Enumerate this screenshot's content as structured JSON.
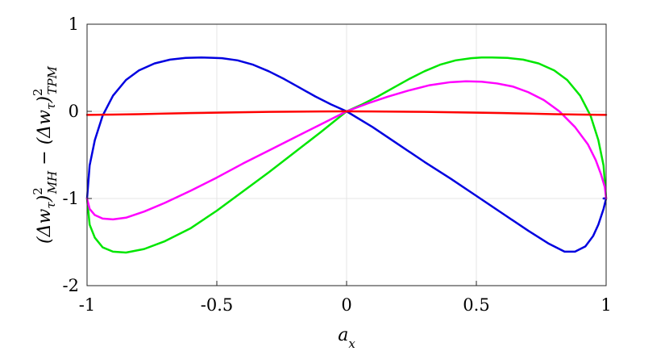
{
  "chart_data": {
    "type": "line",
    "xlabel": "a_x",
    "ylabel": "(Δw_τ)²_MH − (Δw_τ)²_TPM",
    "xlim": [
      -1,
      1
    ],
    "ylim": [
      -2,
      1
    ],
    "xticks": [
      "-1",
      "-0.5",
      "0",
      "0.5",
      "1"
    ],
    "yticks": [
      "-2",
      "-1",
      "0",
      "1"
    ],
    "grid": true,
    "legend": "none",
    "series": [
      {
        "color": "#0000e0",
        "x": [
          -1,
          -0.99,
          -0.97,
          -0.94,
          -0.9,
          -0.85,
          -0.8,
          -0.74,
          -0.68,
          -0.62,
          -0.56,
          -0.52,
          -0.48,
          -0.42,
          -0.36,
          -0.3,
          -0.24,
          -0.18,
          -0.12,
          -0.06,
          0,
          0.1,
          0.2,
          0.3,
          0.4,
          0.5,
          0.6,
          0.7,
          0.78,
          0.84,
          0.88,
          0.92,
          0.95,
          0.97,
          0.99,
          1,
          0.999,
          0.995,
          0.99
        ],
        "y": [
          -1,
          -0.62,
          -0.33,
          -0.05,
          0.18,
          0.36,
          0.47,
          0.55,
          0.594,
          0.613,
          0.618,
          0.615,
          0.61,
          0.585,
          0.535,
          0.46,
          0.37,
          0.27,
          0.17,
          0.08,
          0,
          -0.18,
          -0.38,
          -0.58,
          -0.77,
          -0.97,
          -1.17,
          -1.37,
          -1.52,
          -1.61,
          -1.61,
          -1.55,
          -1.43,
          -1.3,
          -1.12,
          -1,
          -0.995,
          -0.998,
          -1
        ]
      },
      {
        "color": "#00e600",
        "x": [
          -1,
          -0.99,
          -0.97,
          -0.94,
          -0.9,
          -0.85,
          -0.78,
          -0.7,
          -0.6,
          -0.5,
          -0.4,
          -0.3,
          -0.2,
          -0.1,
          0,
          0.06,
          0.12,
          0.18,
          0.24,
          0.3,
          0.36,
          0.42,
          0.48,
          0.52,
          0.56,
          0.62,
          0.68,
          0.74,
          0.8,
          0.85,
          0.9,
          0.94,
          0.97,
          0.99,
          1
        ],
        "y": [
          -1,
          -1.3,
          -1.45,
          -1.56,
          -1.61,
          -1.62,
          -1.58,
          -1.49,
          -1.34,
          -1.14,
          -0.92,
          -0.7,
          -0.47,
          -0.24,
          0,
          0.08,
          0.17,
          0.27,
          0.37,
          0.46,
          0.535,
          0.585,
          0.61,
          0.618,
          0.618,
          0.613,
          0.594,
          0.55,
          0.47,
          0.36,
          0.18,
          -0.05,
          -0.33,
          -0.62,
          -1
        ]
      },
      {
        "color": "#ff00ff",
        "x": [
          -1,
          -0.99,
          -0.97,
          -0.94,
          -0.9,
          -0.85,
          -0.78,
          -0.7,
          -0.6,
          -0.5,
          -0.4,
          -0.3,
          -0.2,
          -0.1,
          0,
          0.08,
          0.16,
          0.24,
          0.32,
          0.4,
          0.46,
          0.52,
          0.58,
          0.64,
          0.7,
          0.76,
          0.82,
          0.88,
          0.93,
          0.96,
          0.98,
          0.995,
          1
        ],
        "y": [
          -1,
          -1.12,
          -1.19,
          -1.23,
          -1.24,
          -1.22,
          -1.15,
          -1.05,
          -0.91,
          -0.76,
          -0.6,
          -0.45,
          -0.3,
          -0.15,
          0,
          0.09,
          0.17,
          0.24,
          0.3,
          0.335,
          0.345,
          0.34,
          0.32,
          0.285,
          0.22,
          0.13,
          0.0,
          -0.18,
          -0.38,
          -0.56,
          -0.72,
          -0.87,
          -1
        ]
      },
      {
        "color": "#ff0000",
        "x": [
          -1,
          -0.9,
          -0.8,
          -0.7,
          -0.6,
          -0.5,
          -0.4,
          -0.3,
          -0.2,
          -0.1,
          0,
          0.1,
          0.2,
          0.3,
          0.4,
          0.5,
          0.6,
          0.7,
          0.8,
          0.9,
          1
        ],
        "y": [
          -0.04,
          -0.037,
          -0.032,
          -0.026,
          -0.02,
          -0.015,
          -0.01,
          -0.006,
          -0.003,
          -0.001,
          0,
          -0.001,
          -0.003,
          -0.006,
          -0.01,
          -0.015,
          -0.02,
          -0.026,
          -0.032,
          -0.037,
          -0.04
        ]
      }
    ]
  }
}
